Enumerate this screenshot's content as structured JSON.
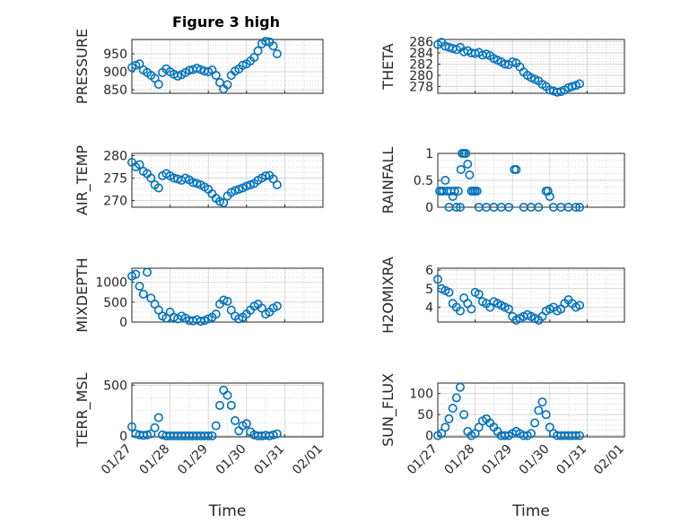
{
  "figure": {
    "title": "Figure 3 high",
    "marker_color": "#0072bd"
  },
  "chart_data": [
    {
      "type": "scatter",
      "ylabel": "PRESSURE",
      "ylim": [
        840,
        990
      ],
      "yticks": [
        850,
        900,
        950
      ],
      "ytick_labels": [
        "850",
        "900",
        "950"
      ],
      "xlim": [
        0,
        5
      ],
      "grid": true,
      "x": [
        0,
        0.1,
        0.2,
        0.3,
        0.4,
        0.5,
        0.6,
        0.7,
        0.8,
        0.9,
        1.0,
        1.1,
        1.2,
        1.3,
        1.4,
        1.5,
        1.6,
        1.7,
        1.8,
        1.9,
        2.0,
        2.1,
        2.2,
        2.3,
        2.4,
        2.5,
        2.6,
        2.7,
        2.8,
        2.9,
        3.0,
        3.1,
        3.2,
        3.3,
        3.4,
        3.5,
        3.6,
        3.7,
        3.8
      ],
      "y": [
        912,
        918,
        922,
        905,
        898,
        890,
        882,
        865,
        898,
        908,
        900,
        893,
        888,
        892,
        898,
        904,
        906,
        910,
        906,
        902,
        900,
        905,
        890,
        870,
        852,
        864,
        890,
        902,
        908,
        918,
        922,
        930,
        940,
        958,
        978,
        985,
        983,
        972,
        950
      ]
    },
    {
      "type": "scatter",
      "ylabel": "THETA",
      "ylim": [
        276.8,
        286.4
      ],
      "yticks": [
        278,
        280,
        282,
        284,
        286
      ],
      "ytick_labels": [
        "278",
        "280",
        "282",
        "284",
        "286"
      ],
      "xlim": [
        0,
        5
      ],
      "grid": true,
      "x": [
        0,
        0.1,
        0.2,
        0.3,
        0.4,
        0.5,
        0.6,
        0.7,
        0.8,
        0.9,
        1.0,
        1.1,
        1.2,
        1.3,
        1.4,
        1.5,
        1.6,
        1.7,
        1.8,
        1.9,
        2.0,
        2.1,
        2.2,
        2.3,
        2.4,
        2.5,
        2.6,
        2.7,
        2.8,
        2.9,
        3.0,
        3.1,
        3.2,
        3.3,
        3.4,
        3.5,
        3.6,
        3.7,
        3.8
      ],
      "y": [
        285.5,
        285.9,
        285.2,
        285.0,
        284.8,
        284.6,
        285.0,
        284.2,
        284.4,
        284.0,
        283.9,
        284.1,
        283.6,
        283.8,
        283.5,
        283.0,
        282.7,
        282.4,
        282.0,
        281.9,
        282.4,
        282.2,
        281.5,
        280.6,
        280.0,
        279.6,
        279.3,
        279.0,
        278.4,
        278.0,
        277.4,
        277.2,
        277.0,
        277.1,
        277.4,
        277.8,
        278.0,
        278.2,
        278.5
      ]
    },
    {
      "type": "scatter",
      "ylabel": "AIR_TEMP",
      "ylim": [
        268.5,
        280.5
      ],
      "yticks": [
        270,
        275,
        280
      ],
      "ytick_labels": [
        "270",
        "275",
        "280"
      ],
      "xlim": [
        0,
        5
      ],
      "grid": true,
      "x": [
        0,
        0.1,
        0.2,
        0.3,
        0.4,
        0.5,
        0.6,
        0.7,
        0.8,
        0.9,
        1.0,
        1.1,
        1.2,
        1.3,
        1.4,
        1.5,
        1.6,
        1.7,
        1.8,
        1.9,
        2.0,
        2.1,
        2.2,
        2.3,
        2.4,
        2.5,
        2.6,
        2.7,
        2.8,
        2.9,
        3.0,
        3.1,
        3.2,
        3.3,
        3.4,
        3.5,
        3.6,
        3.7,
        3.8
      ],
      "y": [
        278.5,
        277.5,
        278.0,
        276.5,
        276.0,
        275.0,
        273.5,
        272.8,
        275.5,
        276.0,
        275.5,
        275.0,
        274.8,
        274.5,
        275.0,
        274.6,
        274.0,
        273.8,
        273.5,
        273.0,
        272.5,
        271.5,
        270.5,
        269.8,
        269.5,
        271.0,
        271.8,
        272.2,
        272.5,
        272.8,
        273.2,
        273.5,
        273.8,
        274.5,
        275.0,
        275.5,
        275.6,
        274.8,
        273.5
      ]
    },
    {
      "type": "scatter",
      "ylabel": "RAINFALL",
      "ylim": [
        0,
        1
      ],
      "yticks": [
        0,
        0.5,
        1
      ],
      "ytick_labels": [
        "0",
        "0.5",
        "1"
      ],
      "xlim": [
        0,
        5
      ],
      "grid": true,
      "x": [
        0.05,
        0.1,
        0.15,
        0.2,
        0.25,
        0.3,
        0.35,
        0.4,
        0.45,
        0.5,
        0.55,
        0.6,
        0.62,
        0.65,
        0.7,
        0.75,
        0.8,
        0.85,
        0.9,
        0.95,
        1.0,
        1.05,
        1.1,
        1.3,
        1.5,
        1.7,
        1.9,
        2.05,
        2.1,
        2.3,
        2.5,
        2.7,
        2.9,
        2.95,
        3.0,
        3.1,
        3.3,
        3.5,
        3.7,
        3.8
      ],
      "y": [
        0.3,
        0.3,
        0.3,
        0.5,
        0.3,
        0,
        0.3,
        0.2,
        0.3,
        0,
        0.3,
        0,
        0.7,
        1.0,
        1.0,
        1.0,
        0.8,
        0.6,
        0.3,
        0.3,
        0.3,
        0.3,
        0,
        0,
        0,
        0,
        0,
        0.7,
        0.7,
        0,
        0,
        0,
        0.3,
        0.3,
        0.2,
        0,
        0,
        0,
        0,
        0
      ]
    },
    {
      "type": "scatter",
      "ylabel": "MIXDEPTH",
      "ylim": [
        0,
        1350
      ],
      "yticks": [
        0,
        500,
        1000
      ],
      "ytick_labels": [
        "0",
        "500",
        "1000"
      ],
      "xlim": [
        0,
        5
      ],
      "grid": true,
      "x": [
        0,
        0.1,
        0.2,
        0.3,
        0.4,
        0.5,
        0.6,
        0.7,
        0.8,
        0.9,
        1.0,
        1.1,
        1.2,
        1.3,
        1.4,
        1.5,
        1.6,
        1.7,
        1.8,
        1.9,
        2.0,
        2.1,
        2.2,
        2.3,
        2.4,
        2.5,
        2.6,
        2.7,
        2.8,
        2.9,
        3.0,
        3.1,
        3.2,
        3.3,
        3.4,
        3.5,
        3.6,
        3.7,
        3.8
      ],
      "y": [
        1150,
        1200,
        900,
        700,
        1250,
        600,
        450,
        300,
        150,
        100,
        250,
        120,
        80,
        150,
        100,
        40,
        30,
        60,
        20,
        40,
        80,
        120,
        200,
        450,
        550,
        520,
        300,
        150,
        80,
        120,
        200,
        300,
        400,
        450,
        350,
        200,
        250,
        350,
        400
      ]
    },
    {
      "type": "scatter",
      "ylabel": "H2OMIXRA",
      "ylim": [
        3.2,
        6.1
      ],
      "yticks": [
        4,
        5,
        6
      ],
      "ytick_labels": [
        "4",
        "5",
        "6"
      ],
      "xlim": [
        0,
        5
      ],
      "grid": true,
      "x": [
        0,
        0.1,
        0.2,
        0.3,
        0.4,
        0.5,
        0.6,
        0.7,
        0.8,
        0.9,
        1.0,
        1.1,
        1.2,
        1.3,
        1.4,
        1.5,
        1.6,
        1.7,
        1.8,
        1.9,
        2.0,
        2.1,
        2.2,
        2.3,
        2.4,
        2.5,
        2.6,
        2.7,
        2.8,
        2.9,
        3.0,
        3.1,
        3.2,
        3.3,
        3.4,
        3.5,
        3.6,
        3.7,
        3.8
      ],
      "y": [
        5.5,
        5.0,
        4.9,
        4.8,
        4.2,
        4.0,
        3.8,
        4.5,
        4.2,
        3.9,
        4.8,
        4.7,
        4.3,
        4.2,
        4.0,
        4.3,
        4.2,
        4.1,
        4.0,
        3.9,
        3.5,
        3.3,
        3.4,
        3.5,
        3.6,
        3.5,
        3.4,
        3.3,
        3.5,
        3.8,
        3.9,
        4.0,
        3.8,
        3.9,
        4.2,
        4.4,
        4.2,
        4.0,
        4.1
      ]
    },
    {
      "type": "scatter",
      "ylabel": "TERR_MSL",
      "ylim": [
        -10,
        520
      ],
      "yticks": [
        0,
        500
      ],
      "ytick_labels": [
        "0",
        "500"
      ],
      "xlim": [
        0,
        5
      ],
      "grid": true,
      "xticks": [
        0,
        1,
        2,
        3,
        4,
        5
      ],
      "xtick_labels": [
        "01/27",
        "01/28",
        "01/29",
        "01/30",
        "01/31",
        "02/01"
      ],
      "xlabel": "Time",
      "x": [
        0,
        0.1,
        0.2,
        0.3,
        0.4,
        0.5,
        0.6,
        0.7,
        0.8,
        0.9,
        1.0,
        1.1,
        1.2,
        1.3,
        1.4,
        1.5,
        1.6,
        1.7,
        1.8,
        1.9,
        2.0,
        2.1,
        2.2,
        2.3,
        2.4,
        2.5,
        2.6,
        2.7,
        2.8,
        2.9,
        3.0,
        3.1,
        3.2,
        3.3,
        3.4,
        3.5,
        3.6,
        3.7,
        3.8
      ],
      "y": [
        90,
        20,
        10,
        5,
        10,
        20,
        80,
        180,
        10,
        0,
        0,
        0,
        0,
        0,
        0,
        0,
        0,
        0,
        0,
        0,
        0,
        0,
        100,
        300,
        450,
        400,
        300,
        150,
        50,
        100,
        120,
        40,
        10,
        0,
        0,
        5,
        0,
        10,
        20
      ]
    },
    {
      "type": "scatter",
      "ylabel": "SUN_FLUX",
      "ylim": [
        -3,
        125
      ],
      "yticks": [
        0,
        50,
        100
      ],
      "ytick_labels": [
        "0",
        "50",
        "100"
      ],
      "xlim": [
        0,
        5
      ],
      "grid": true,
      "xticks": [
        0,
        1,
        2,
        3,
        4,
        5
      ],
      "xtick_labels": [
        "01/27",
        "01/28",
        "01/29",
        "01/30",
        "01/31",
        "02/01"
      ],
      "xlabel": "Time",
      "x": [
        0,
        0.1,
        0.2,
        0.3,
        0.4,
        0.5,
        0.6,
        0.7,
        0.8,
        0.9,
        1.0,
        1.1,
        1.2,
        1.3,
        1.4,
        1.5,
        1.6,
        1.7,
        1.8,
        1.9,
        2.0,
        2.1,
        2.2,
        2.3,
        2.4,
        2.5,
        2.6,
        2.7,
        2.8,
        2.9,
        3.0,
        3.1,
        3.2,
        3.3,
        3.4,
        3.5,
        3.6,
        3.7,
        3.8
      ],
      "y": [
        0,
        5,
        20,
        40,
        65,
        90,
        115,
        50,
        10,
        0,
        5,
        20,
        35,
        40,
        30,
        20,
        10,
        0,
        0,
        0,
        5,
        10,
        5,
        0,
        0,
        5,
        30,
        60,
        80,
        50,
        20,
        5,
        0,
        0,
        0,
        0,
        0,
        0,
        0
      ]
    }
  ]
}
